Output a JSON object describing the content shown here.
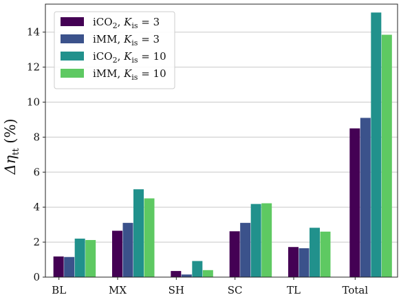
{
  "chart_data": {
    "type": "bar",
    "categories": [
      "BL",
      "MX",
      "SH",
      "SC",
      "TL",
      "Total"
    ],
    "series": [
      {
        "name": "iCO₂, K_is = 3",
        "name_parts": {
          "a": "iCO",
          "sub": "2",
          "b": ", ",
          "k": "K",
          "ksub": "is",
          "c": " = 3"
        },
        "color": "#440154",
        "values": [
          1.18,
          2.65,
          0.35,
          2.62,
          1.72,
          8.5
        ]
      },
      {
        "name": "iMM, K_is = 3",
        "name_parts": {
          "a": "iMM",
          "sub": "",
          "b": ", ",
          "k": "K",
          "ksub": "is",
          "c": " = 3"
        },
        "color": "#3b528b",
        "values": [
          1.15,
          3.1,
          0.15,
          3.1,
          1.65,
          9.1
        ]
      },
      {
        "name": "iCO₂, K_is = 10",
        "name_parts": {
          "a": "iCO",
          "sub": "2",
          "b": ", ",
          "k": "K",
          "ksub": "is",
          "c": " = 10"
        },
        "color": "#21918c",
        "values": [
          2.2,
          5.02,
          0.92,
          4.18,
          2.82,
          15.12
        ]
      },
      {
        "name": "iMM, K_is = 10",
        "name_parts": {
          "a": "iMM",
          "sub": "",
          "b": ", ",
          "k": "K",
          "ksub": "is",
          "c": " = 10"
        },
        "color": "#5ec962",
        "values": [
          2.12,
          4.5,
          0.4,
          4.22,
          2.6,
          13.85
        ]
      }
    ],
    "ylabel": {
      "a": "Δη",
      "sub": "tt",
      "b": " (%)"
    },
    "ylim": [
      0,
      15.6
    ],
    "yticks": [
      0,
      2,
      4,
      6,
      8,
      10,
      12,
      14
    ],
    "grid": "horizontal",
    "legend_position": "top-left"
  }
}
